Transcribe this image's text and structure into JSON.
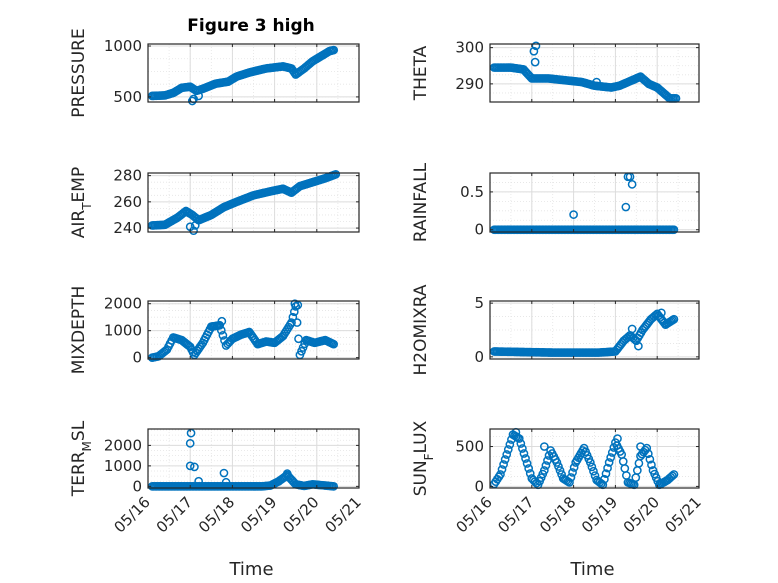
{
  "figure_title": "Figure 3 high",
  "colors": {
    "marker": "#0072BD",
    "axis": "#262626",
    "grid": "#dcdcdc"
  },
  "chart_data": [
    {
      "id": "pressure",
      "type": "scatter",
      "ylabel": "PRESSURE",
      "ylim": [
        450,
        1020
      ],
      "yticks": [
        500,
        1000
      ],
      "xlim": [
        0,
        5
      ],
      "grid": true,
      "xticks_shown": false,
      "knots": [
        [
          0.1,
          510
        ],
        [
          0.4,
          515
        ],
        [
          0.6,
          540
        ],
        [
          0.8,
          590
        ],
        [
          1.0,
          600
        ],
        [
          1.15,
          560
        ],
        [
          1.3,
          580
        ],
        [
          1.6,
          630
        ],
        [
          1.9,
          650
        ],
        [
          2.1,
          700
        ],
        [
          2.4,
          740
        ],
        [
          2.8,
          780
        ],
        [
          3.2,
          800
        ],
        [
          3.4,
          780
        ],
        [
          3.5,
          720
        ],
        [
          3.7,
          780
        ],
        [
          3.9,
          850
        ],
        [
          4.1,
          900
        ],
        [
          4.3,
          950
        ],
        [
          4.4,
          960
        ]
      ],
      "outliers": [
        [
          1.05,
          460
        ],
        [
          1.08,
          480
        ],
        [
          1.2,
          510
        ]
      ]
    },
    {
      "id": "theta",
      "type": "scatter",
      "ylabel": "THETA",
      "ylim": [
        285,
        301
      ],
      "yticks": [
        290,
        300
      ],
      "xlim": [
        0,
        5
      ],
      "grid": true,
      "xticks_shown": false,
      "knots": [
        [
          0.1,
          294.5
        ],
        [
          0.5,
          294.5
        ],
        [
          0.8,
          294.0
        ],
        [
          1.0,
          291.5
        ],
        [
          1.4,
          291.5
        ],
        [
          1.8,
          291.0
        ],
        [
          2.2,
          290.5
        ],
        [
          2.5,
          289.5
        ],
        [
          2.9,
          289.0
        ],
        [
          3.1,
          289.5
        ],
        [
          3.3,
          290.5
        ],
        [
          3.6,
          292.0
        ],
        [
          3.8,
          290.0
        ],
        [
          4.0,
          289.0
        ],
        [
          4.2,
          287.0
        ],
        [
          4.3,
          286.0
        ],
        [
          4.45,
          286.0
        ]
      ],
      "outliers": [
        [
          1.05,
          299
        ],
        [
          1.1,
          300.5
        ],
        [
          1.08,
          296
        ],
        [
          2.55,
          290.5
        ]
      ]
    },
    {
      "id": "air_temp",
      "type": "scatter",
      "ylabel": "AIR_TEMP",
      "ylim": [
        237,
        282
      ],
      "yticks": [
        240,
        260,
        280
      ],
      "xlim": [
        0,
        5
      ],
      "grid": true,
      "xticks_shown": false,
      "knots": [
        [
          0.1,
          242
        ],
        [
          0.4,
          242.5
        ],
        [
          0.7,
          248
        ],
        [
          0.9,
          253
        ],
        [
          1.05,
          250
        ],
        [
          1.2,
          246
        ],
        [
          1.5,
          250
        ],
        [
          1.8,
          256
        ],
        [
          2.1,
          260
        ],
        [
          2.5,
          265
        ],
        [
          2.9,
          268
        ],
        [
          3.2,
          270
        ],
        [
          3.4,
          267
        ],
        [
          3.6,
          272
        ],
        [
          3.9,
          275
        ],
        [
          4.2,
          278
        ],
        [
          4.45,
          281
        ]
      ],
      "outliers": [
        [
          1.0,
          241
        ],
        [
          1.08,
          238
        ],
        [
          1.12,
          242
        ]
      ]
    },
    {
      "id": "rainfall",
      "type": "scatter",
      "ylabel": "RAINFALL",
      "ylim": [
        -0.03,
        0.75
      ],
      "yticks": [
        0,
        0.5
      ],
      "xlim": [
        0,
        5
      ],
      "grid": true,
      "xticks_shown": false,
      "knots": [
        [
          0.1,
          0
        ],
        [
          4.4,
          0
        ]
      ],
      "outliers": [
        [
          2.0,
          0.2
        ],
        [
          3.25,
          0.3
        ],
        [
          3.3,
          0.7
        ],
        [
          3.35,
          0.7
        ],
        [
          3.4,
          0.6
        ]
      ]
    },
    {
      "id": "mixdepth",
      "type": "scatter",
      "ylabel": "MIXDEPTH",
      "ylim": [
        -50,
        2100
      ],
      "yticks": [
        0,
        1000,
        2000
      ],
      "xlim": [
        0,
        5
      ],
      "grid": true,
      "xticks_shown": false,
      "knots": [
        [
          0.1,
          0
        ],
        [
          0.25,
          50
        ],
        [
          0.45,
          300
        ],
        [
          0.6,
          750
        ],
        [
          0.8,
          650
        ],
        [
          1.0,
          400
        ],
        [
          1.1,
          100
        ],
        [
          1.3,
          550
        ],
        [
          1.5,
          1150
        ],
        [
          1.7,
          1200
        ],
        [
          1.85,
          450
        ],
        [
          2.0,
          700
        ],
        [
          2.2,
          850
        ],
        [
          2.4,
          950
        ],
        [
          2.6,
          500
        ],
        [
          2.8,
          600
        ],
        [
          3.0,
          550
        ],
        [
          3.2,
          800
        ],
        [
          3.4,
          1300
        ],
        [
          3.5,
          1900
        ],
        [
          3.6,
          100
        ],
        [
          3.75,
          650
        ],
        [
          3.95,
          550
        ],
        [
          4.2,
          650
        ],
        [
          4.4,
          500
        ]
      ],
      "outliers": [
        [
          3.48,
          2000
        ],
        [
          3.55,
          1950
        ],
        [
          1.75,
          1350
        ]
      ]
    },
    {
      "id": "h2omixra",
      "type": "scatter",
      "ylabel": "H2OMIXRA",
      "ylim": [
        -0.2,
        5.2
      ],
      "yticks": [
        0,
        5
      ],
      "xlim": [
        0,
        5
      ],
      "grid": true,
      "xticks_shown": false,
      "knots": [
        [
          0.1,
          0.5
        ],
        [
          1.5,
          0.4
        ],
        [
          2.6,
          0.4
        ],
        [
          3.0,
          0.5
        ],
        [
          3.2,
          1.5
        ],
        [
          3.35,
          2.0
        ],
        [
          3.5,
          1.5
        ],
        [
          3.65,
          2.5
        ],
        [
          3.85,
          3.5
        ],
        [
          4.0,
          4.0
        ],
        [
          4.2,
          3.0
        ],
        [
          4.4,
          3.5
        ]
      ],
      "outliers": [
        [
          3.4,
          2.6
        ],
        [
          3.55,
          1.0
        ],
        [
          4.1,
          4.1
        ]
      ]
    },
    {
      "id": "terr_msl",
      "type": "scatter",
      "ylabel": "TERR_MSL",
      "ylim": [
        -80,
        2800
      ],
      "yticks": [
        0,
        1000,
        2000
      ],
      "xlim": [
        0,
        5
      ],
      "grid": true,
      "xticks_shown": true,
      "xtick_labels": [
        "05/16",
        "05/17",
        "05/18",
        "05/19",
        "05/20",
        "05/21"
      ],
      "xlabel": "Time",
      "knots": [
        [
          0.1,
          0
        ],
        [
          2.7,
          0
        ],
        [
          2.9,
          40
        ],
        [
          3.1,
          250
        ],
        [
          3.3,
          550
        ],
        [
          3.5,
          100
        ],
        [
          3.7,
          20
        ],
        [
          3.9,
          100
        ],
        [
          4.4,
          0
        ]
      ],
      "outliers": [
        [
          1.0,
          2100
        ],
        [
          1.02,
          2600
        ],
        [
          1.0,
          1000
        ],
        [
          1.1,
          950
        ],
        [
          1.2,
          250
        ],
        [
          1.8,
          650
        ],
        [
          1.85,
          200
        ],
        [
          3.3,
          620
        ]
      ]
    },
    {
      "id": "sun_flux",
      "type": "scatter",
      "ylabel": "SUN_FLUX",
      "ylim": [
        -20,
        720
      ],
      "yticks": [
        0,
        500
      ],
      "xlim": [
        0,
        5
      ],
      "grid": true,
      "xticks_shown": true,
      "xtick_labels": [
        "05/16",
        "05/17",
        "05/18",
        "05/19",
        "05/20",
        "05/21"
      ],
      "xlabel": "Time",
      "knots": [
        [
          0.1,
          30
        ],
        [
          0.25,
          150
        ],
        [
          0.4,
          400
        ],
        [
          0.55,
          650
        ],
        [
          0.7,
          600
        ],
        [
          0.85,
          350
        ],
        [
          1.0,
          100
        ],
        [
          1.15,
          20
        ],
        [
          1.3,
          200
        ],
        [
          1.45,
          450
        ],
        [
          1.6,
          300
        ],
        [
          1.75,
          100
        ],
        [
          1.9,
          50
        ],
        [
          2.05,
          300
        ],
        [
          2.25,
          480
        ],
        [
          2.4,
          300
        ],
        [
          2.55,
          80
        ],
        [
          2.7,
          20
        ],
        [
          2.85,
          300
        ],
        [
          3.0,
          550
        ],
        [
          3.15,
          400
        ],
        [
          3.3,
          50
        ],
        [
          3.45,
          20
        ],
        [
          3.6,
          380
        ],
        [
          3.75,
          480
        ],
        [
          3.9,
          200
        ],
        [
          4.05,
          20
        ],
        [
          4.25,
          80
        ],
        [
          4.4,
          150
        ]
      ],
      "outliers": [
        [
          0.62,
          680
        ],
        [
          1.3,
          500
        ],
        [
          3.05,
          600
        ],
        [
          3.6,
          500
        ]
      ]
    }
  ]
}
